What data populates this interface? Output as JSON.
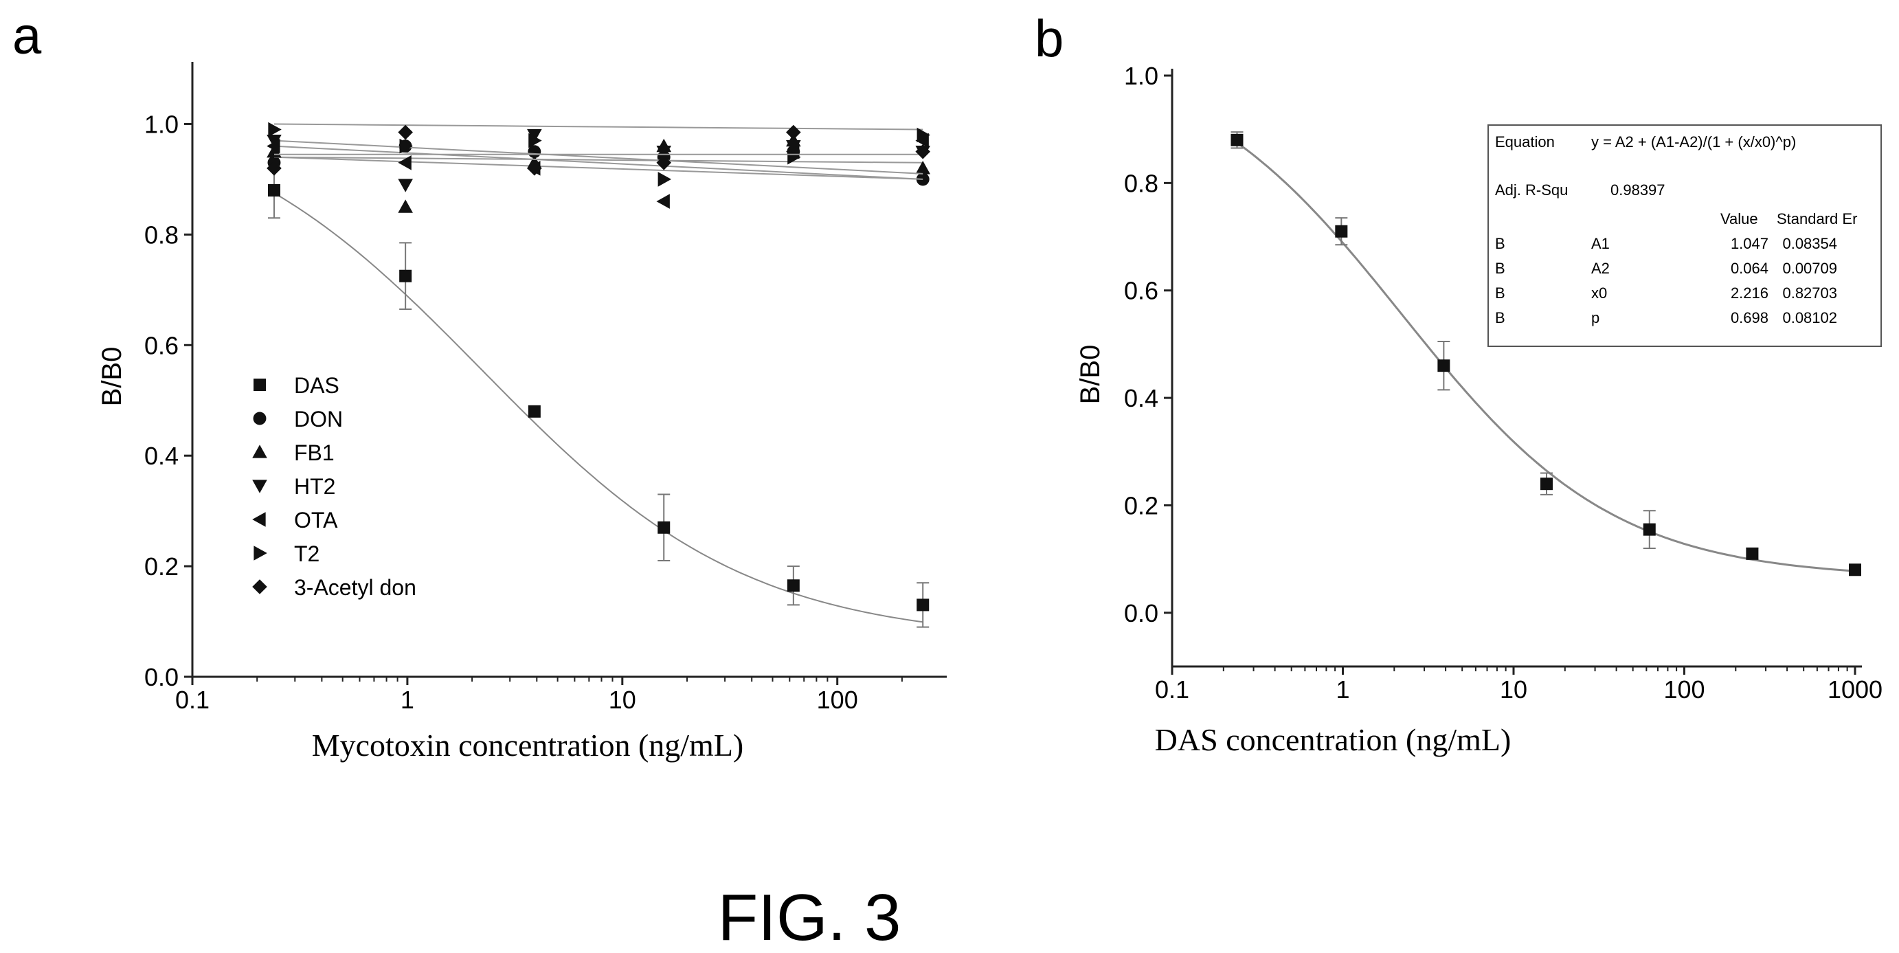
{
  "figure_label": "FIG. 3",
  "chart_data": [
    {
      "panel": "a",
      "type": "scatter",
      "xlabel": "Mycotoxin concentration (ng/mL)",
      "ylabel": "B/B0",
      "xscale": "log",
      "xlim": [
        0.1,
        300
      ],
      "ylim": [
        0.0,
        1.1
      ],
      "xticks": [
        "0.1",
        "1",
        "10",
        "100"
      ],
      "yticks": [
        "0.0",
        "0.2",
        "0.4",
        "0.6",
        "0.8",
        "1.0"
      ],
      "legend_position": "middle-left",
      "series": [
        {
          "name": "DAS",
          "marker": "square",
          "x": [
            0.24,
            0.98,
            3.9,
            15.6,
            62.5,
            250
          ],
          "y": [
            0.88,
            0.725,
            0.48,
            0.27,
            0.165,
            0.13
          ],
          "err": [
            0.05,
            0.06,
            0.0,
            0.06,
            0.035,
            0.04
          ],
          "fit": {
            "A1": 1.047,
            "A2": 0.064,
            "x0": 2.216,
            "p": 0.698
          }
        },
        {
          "name": "DON",
          "marker": "circle",
          "x": [
            0.24,
            0.98,
            3.9,
            15.6,
            62.5,
            250
          ],
          "y": [
            0.93,
            0.96,
            0.95,
            0.94,
            0.95,
            0.9
          ],
          "trend": [
            0.94,
            0.9
          ]
        },
        {
          "name": "FB1",
          "marker": "triangle-up",
          "x": [
            0.24,
            0.98,
            3.9,
            15.6,
            62.5,
            250
          ],
          "y": [
            0.95,
            0.85,
            0.93,
            0.96,
            0.97,
            0.92
          ],
          "trend": [
            0.94,
            0.93
          ]
        },
        {
          "name": "HT2",
          "marker": "triangle-down",
          "x": [
            0.24,
            0.98,
            3.9,
            15.6,
            62.5,
            250
          ],
          "y": [
            0.97,
            0.89,
            0.98,
            0.95,
            0.96,
            0.95
          ],
          "trend": [
            0.97,
            0.91
          ]
        },
        {
          "name": "OTA",
          "marker": "triangle-left",
          "x": [
            0.24,
            0.98,
            3.9,
            15.6,
            62.5,
            250
          ],
          "y": [
            0.96,
            0.93,
            0.92,
            0.86,
            0.95,
            0.97
          ],
          "trend": [
            0.96,
            0.9
          ]
        },
        {
          "name": "T2",
          "marker": "triangle-right",
          "x": [
            0.24,
            0.98,
            3.9,
            15.6,
            62.5,
            250
          ],
          "y": [
            0.99,
            0.96,
            0.97,
            0.9,
            0.94,
            0.98
          ],
          "trend": [
            1.0,
            0.99
          ]
        },
        {
          "name": "3-Acetyl don",
          "marker": "diamond",
          "x": [
            0.24,
            0.98,
            3.9,
            15.6,
            62.5,
            250
          ],
          "y": [
            0.92,
            0.985,
            0.92,
            0.93,
            0.985,
            0.95
          ],
          "trend": [
            0.945,
            0.945
          ]
        }
      ]
    },
    {
      "panel": "b",
      "type": "scatter",
      "xlabel": "DAS concentration (ng/mL)",
      "ylabel": "B/B0",
      "xscale": "log",
      "xlim": [
        0.1,
        1000
      ],
      "ylim": [
        -0.1,
        1.0
      ],
      "xticks": [
        "0.1",
        "1",
        "10",
        "100",
        "1000"
      ],
      "yticks": [
        "0.0",
        "0.2",
        "0.4",
        "0.6",
        "0.8",
        "1.0"
      ],
      "series": [
        {
          "name": "DAS",
          "marker": "square",
          "x": [
            0.24,
            0.98,
            3.9,
            15.6,
            62.5,
            250,
            1000
          ],
          "y": [
            0.88,
            0.71,
            0.46,
            0.24,
            0.155,
            0.11,
            0.08
          ],
          "err": [
            0.015,
            0.025,
            0.045,
            0.02,
            0.035,
            0.01,
            0.005
          ],
          "fit": {
            "A1": 1.047,
            "A2": 0.064,
            "x0": 2.216,
            "p": 0.698
          }
        }
      ],
      "fit_table": {
        "equation_label": "Equation",
        "equation": "y = A2 + (A1-A2)/(1 + (x/x0)^p)",
        "r2_label": "Adj. R-Squ",
        "r2_value": "0.98397",
        "value_header": "Value",
        "stderr_header": "Standard Er",
        "rows": [
          {
            "series": "B",
            "param": "A1",
            "value": "1.047",
            "stderr": "0.08354"
          },
          {
            "series": "B",
            "param": "A2",
            "value": "0.064",
            "stderr": "0.00709"
          },
          {
            "series": "B",
            "param": "x0",
            "value": "2.216",
            "stderr": "0.82703"
          },
          {
            "series": "B",
            "param": "p",
            "value": "0.698",
            "stderr": "0.08102"
          }
        ]
      }
    }
  ],
  "colors": {
    "data": "#111111",
    "axis": "#222222",
    "fit_curve": "#888888",
    "trend_curve": "#999999",
    "error_bar": "#777777"
  }
}
